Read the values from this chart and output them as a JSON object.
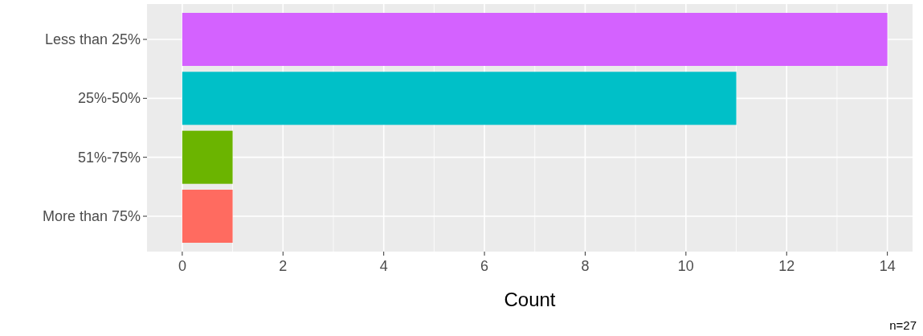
{
  "chart_data": {
    "type": "bar",
    "orientation": "horizontal",
    "categories": [
      "Less than 25%",
      "25%-50%",
      "51%-75%",
      "More than 75%"
    ],
    "values": [
      14,
      11,
      1,
      1
    ],
    "colors": [
      "#d462ff",
      "#00c0c8",
      "#6bb400",
      "#ff6b60"
    ],
    "xlim": [
      -0.7,
      14.5
    ],
    "xticks": [
      0,
      2,
      4,
      6,
      8,
      10,
      12,
      14
    ],
    "xlabel": "Count",
    "annotations": [
      "n=27"
    ],
    "grid": true
  }
}
